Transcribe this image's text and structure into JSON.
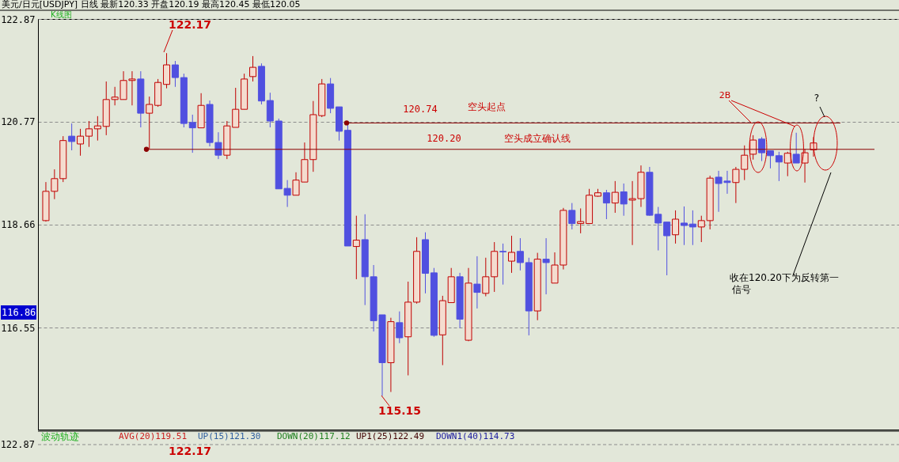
{
  "chart_data": {
    "type": "candlestick",
    "title": "美元/日元[USDJPY]    日线    最新120.33  开盘120.19  最高120.45  最低120.05",
    "categories": [
      null,
      null,
      null,
      null,
      null,
      null,
      null,
      null,
      null,
      null,
      null,
      null,
      null,
      null,
      null,
      null,
      null,
      null,
      null,
      null,
      null,
      null,
      null,
      null,
      null,
      null,
      null,
      null,
      null,
      null,
      null,
      null,
      null,
      null,
      null,
      null,
      null,
      null,
      null,
      null,
      null,
      null,
      null,
      null,
      null,
      null,
      null,
      null,
      null,
      null,
      null,
      null,
      null,
      null,
      null,
      null,
      null,
      null,
      null,
      null,
      null,
      null,
      null,
      null,
      null,
      null,
      null,
      null,
      null,
      null,
      null,
      null,
      null,
      null,
      null,
      null,
      null,
      null,
      null,
      null,
      null,
      null,
      null,
      null,
      null,
      null,
      null,
      null,
      null,
      null
    ],
    "ohlc": [
      [
        118.74,
        119.53,
        118.72,
        119.34
      ],
      [
        119.34,
        119.79,
        119.18,
        119.6
      ],
      [
        119.6,
        120.47,
        119.53,
        120.38
      ],
      [
        120.47,
        120.73,
        120.18,
        120.36
      ],
      [
        120.31,
        120.62,
        120.07,
        120.47
      ],
      [
        120.47,
        120.78,
        120.25,
        120.62
      ],
      [
        120.62,
        120.88,
        120.38,
        120.68
      ],
      [
        120.67,
        121.59,
        120.49,
        121.22
      ],
      [
        121.22,
        121.48,
        121.1,
        121.27
      ],
      [
        121.22,
        121.8,
        121.22,
        121.61
      ],
      [
        121.61,
        121.8,
        121.1,
        121.64
      ],
      [
        121.64,
        121.8,
        120.65,
        120.94
      ],
      [
        120.94,
        121.28,
        120.2,
        121.12
      ],
      [
        121.1,
        121.64,
        121.07,
        121.57
      ],
      [
        121.53,
        122.17,
        121.45,
        121.93
      ],
      [
        121.93,
        122.01,
        121.48,
        121.67
      ],
      [
        121.67,
        121.75,
        120.65,
        120.73
      ],
      [
        120.75,
        120.91,
        120.13,
        120.64
      ],
      [
        120.64,
        121.35,
        120.64,
        121.1
      ],
      [
        121.12,
        121.2,
        120.26,
        120.34
      ],
      [
        120.34,
        120.55,
        120.0,
        120.08
      ],
      [
        120.08,
        120.78,
        120.0,
        120.68
      ],
      [
        120.65,
        121.46,
        120.65,
        121.02
      ],
      [
        121.02,
        121.75,
        121.02,
        121.64
      ],
      [
        121.69,
        122.11,
        121.59,
        121.88
      ],
      [
        121.9,
        121.96,
        121.12,
        121.19
      ],
      [
        121.2,
        121.36,
        120.65,
        120.78
      ],
      [
        120.78,
        120.83,
        119.39,
        119.39
      ],
      [
        119.4,
        119.57,
        119.02,
        119.26
      ],
      [
        119.26,
        119.73,
        119.26,
        119.57
      ],
      [
        119.53,
        120.34,
        119.53,
        119.99
      ],
      [
        119.99,
        121.19,
        119.74,
        120.91
      ],
      [
        120.89,
        121.64,
        120.86,
        121.54
      ],
      [
        121.54,
        121.66,
        120.94,
        121.04
      ],
      [
        121.07,
        121.07,
        120.38,
        120.57
      ],
      [
        120.59,
        120.74,
        118.22,
        118.22
      ],
      [
        118.21,
        118.84,
        117.54,
        118.34
      ],
      [
        118.35,
        118.87,
        117.01,
        117.59
      ],
      [
        117.59,
        117.83,
        116.47,
        116.69
      ],
      [
        116.81,
        116.81,
        115.15,
        115.83
      ],
      [
        115.83,
        116.75,
        115.23,
        116.67
      ],
      [
        116.65,
        116.88,
        116.23,
        116.34
      ],
      [
        116.36,
        117.49,
        115.57,
        117.07
      ],
      [
        117.07,
        118.4,
        117.04,
        118.11
      ],
      [
        118.35,
        118.5,
        117.25,
        117.66
      ],
      [
        117.67,
        117.77,
        116.36,
        116.39
      ],
      [
        116.4,
        117.2,
        115.78,
        117.1
      ],
      [
        117.06,
        117.77,
        117.06,
        117.59
      ],
      [
        117.59,
        117.67,
        116.54,
        116.72
      ],
      [
        116.29,
        117.77,
        116.27,
        117.46
      ],
      [
        117.44,
        118.01,
        116.94,
        117.27
      ],
      [
        117.25,
        117.98,
        117.19,
        117.59
      ],
      [
        117.59,
        118.3,
        117.28,
        118.11
      ],
      [
        118.11,
        118.27,
        117.43,
        118.1
      ],
      [
        117.91,
        118.43,
        117.67,
        118.09
      ],
      [
        118.11,
        118.38,
        117.72,
        117.88
      ],
      [
        117.88,
        117.98,
        116.39,
        116.89
      ],
      [
        116.89,
        118.08,
        116.7,
        117.95
      ],
      [
        117.95,
        118.38,
        117.23,
        117.88
      ],
      [
        117.46,
        118.09,
        117.46,
        117.83
      ],
      [
        117.83,
        119.0,
        117.74,
        118.95
      ],
      [
        118.95,
        119.1,
        118.56,
        118.68
      ],
      [
        118.68,
        118.99,
        118.48,
        118.72
      ],
      [
        118.68,
        119.39,
        118.68,
        119.26
      ],
      [
        119.24,
        119.39,
        119.23,
        119.31
      ],
      [
        119.31,
        119.37,
        118.77,
        119.1
      ],
      [
        119.1,
        119.55,
        118.9,
        119.32
      ],
      [
        119.33,
        119.5,
        118.84,
        119.08
      ],
      [
        119.16,
        119.55,
        118.24,
        119.19
      ],
      [
        119.19,
        119.87,
        119.02,
        119.73
      ],
      [
        119.73,
        119.84,
        118.84,
        118.85
      ],
      [
        118.87,
        119.02,
        118.13,
        118.69
      ],
      [
        118.71,
        118.71,
        117.62,
        118.43
      ],
      [
        118.45,
        118.95,
        118.27,
        118.77
      ],
      [
        118.69,
        119.03,
        118.24,
        118.64
      ],
      [
        118.67,
        118.95,
        118.24,
        118.61
      ],
      [
        118.61,
        118.84,
        118.3,
        118.74
      ],
      [
        118.74,
        119.66,
        118.56,
        119.61
      ],
      [
        119.63,
        119.76,
        118.92,
        119.5
      ],
      [
        119.55,
        119.76,
        119.29,
        119.52
      ],
      [
        119.52,
        119.84,
        119.1,
        119.79
      ],
      [
        119.79,
        120.28,
        119.57,
        120.08
      ],
      [
        120.1,
        120.49,
        119.99,
        120.39
      ],
      [
        120.41,
        120.45,
        119.96,
        120.13
      ],
      [
        120.17,
        120.17,
        119.81,
        120.07
      ],
      [
        120.07,
        120.15,
        119.55,
        119.94
      ],
      [
        119.92,
        120.15,
        119.65,
        120.12
      ],
      [
        120.1,
        120.54,
        119.92,
        119.92
      ],
      [
        119.92,
        120.21,
        119.52,
        120.13
      ],
      [
        120.19,
        120.45,
        120.05,
        120.33
      ]
    ],
    "ylim": [
      114.46,
      122.87
    ],
    "yticks": [
      122.87,
      120.77,
      118.66,
      116.55
    ],
    "grid": "y",
    "tick_labels": "y",
    "ref_lines": [
      {
        "axis": "y",
        "value": 120.74,
        "label": "120.74",
        "color": "#8b0000"
      },
      {
        "axis": "y",
        "value": 120.2,
        "label": "120.20",
        "color": "#8b0000"
      }
    ],
    "annotations": [
      "K线图",
      "122.17",
      "115.15",
      "空头起点",
      "空头成立确认线",
      "2B",
      "?",
      "收在120.20下为反转第一",
      "116.86",
      "波动轨迹",
      "AVG(20)119.51",
      "UP(15)121.30",
      "DOWN(20)117.12",
      "UP1(25)122.49",
      "DOWN1(40)114.73",
      "122.87",
      "122.17",
      "信号"
    ]
  }
}
